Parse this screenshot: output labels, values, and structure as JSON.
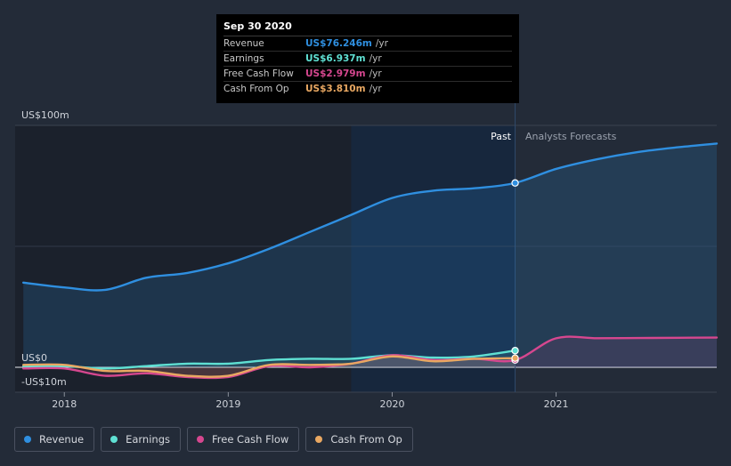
{
  "tooltip": {
    "date": "Sep 30 2020",
    "rows": [
      {
        "label": "Revenue",
        "value": "US$76.246m",
        "unit": "/yr",
        "color": "#2f8fe0"
      },
      {
        "label": "Earnings",
        "value": "US$6.937m",
        "unit": "/yr",
        "color": "#5fe0d3"
      },
      {
        "label": "Free Cash Flow",
        "value": "US$2.979m",
        "unit": "/yr",
        "color": "#d6478f"
      },
      {
        "label": "Cash From Op",
        "value": "US$3.810m",
        "unit": "/yr",
        "color": "#e9a862"
      }
    ]
  },
  "chart_data": {
    "type": "line",
    "title": "",
    "xlabel": "",
    "ylabel": "",
    "y_labels": {
      "top": "US$100m",
      "zero": "US$0",
      "bottom": "-US$10m"
    },
    "ylim": [
      -10,
      100
    ],
    "xlim": [
      2017.7,
      2021.98
    ],
    "x_ticks": [
      {
        "value": 2018,
        "label": "2018"
      },
      {
        "value": 2019,
        "label": "2019"
      },
      {
        "value": 2020,
        "label": "2020"
      },
      {
        "value": 2021,
        "label": "2021"
      }
    ],
    "past_label": "Past",
    "forecast_label": "Analysts Forecasts",
    "past_start": 2019.75,
    "divider_x": 2020.75,
    "series": [
      {
        "name": "Revenue",
        "color": "#2f8fe0",
        "x": [
          2017.75,
          2018.0,
          2018.25,
          2018.5,
          2018.75,
          2019.0,
          2019.25,
          2019.5,
          2019.75,
          2020.0,
          2020.25,
          2020.5,
          2020.75,
          2021.0,
          2021.25,
          2021.5,
          2021.75,
          2021.98
        ],
        "values": [
          35,
          33,
          32,
          37,
          39,
          43,
          49,
          56,
          63,
          70,
          73,
          74,
          76.2,
          82,
          86,
          89,
          91,
          92.5
        ]
      },
      {
        "name": "Earnings",
        "color": "#5fe0d3",
        "x": [
          2017.75,
          2018.0,
          2018.25,
          2018.5,
          2018.75,
          2019.0,
          2019.25,
          2019.5,
          2019.75,
          2020.0,
          2020.25,
          2020.5,
          2020.75
        ],
        "values": [
          0.5,
          0.5,
          -0.5,
          0.5,
          1.5,
          1.5,
          3,
          3.5,
          3.5,
          5,
          4,
          4.5,
          6.9
        ]
      },
      {
        "name": "Free Cash Flow",
        "color": "#d6478f",
        "x": [
          2017.75,
          2018.0,
          2018.25,
          2018.5,
          2018.75,
          2019.0,
          2019.25,
          2019.5,
          2019.75,
          2020.0,
          2020.25,
          2020.5,
          2020.75,
          2021.0,
          2021.25,
          2021.5,
          2021.75,
          2021.98
        ],
        "values": [
          -0.5,
          -0.5,
          -3.5,
          -2.5,
          -4,
          -4,
          0.5,
          0,
          1.5,
          5,
          3,
          3.5,
          3.0,
          12,
          12,
          12.1,
          12.2,
          12.3
        ]
      },
      {
        "name": "Cash From Op",
        "color": "#e9a862",
        "x": [
          2017.75,
          2018.0,
          2018.25,
          2018.5,
          2018.75,
          2019.0,
          2019.25,
          2019.5,
          2019.75,
          2020.0,
          2020.25,
          2020.5,
          2020.75
        ],
        "values": [
          1,
          1,
          -1.5,
          -1.5,
          -3.5,
          -3.5,
          1,
          1,
          1.5,
          4.5,
          2.5,
          3.5,
          3.8
        ]
      }
    ]
  },
  "legend": [
    {
      "label": "Revenue",
      "color": "#2f8fe0"
    },
    {
      "label": "Earnings",
      "color": "#5fe0d3"
    },
    {
      "label": "Free Cash Flow",
      "color": "#d6478f"
    },
    {
      "label": "Cash From Op",
      "color": "#e9a862"
    }
  ]
}
